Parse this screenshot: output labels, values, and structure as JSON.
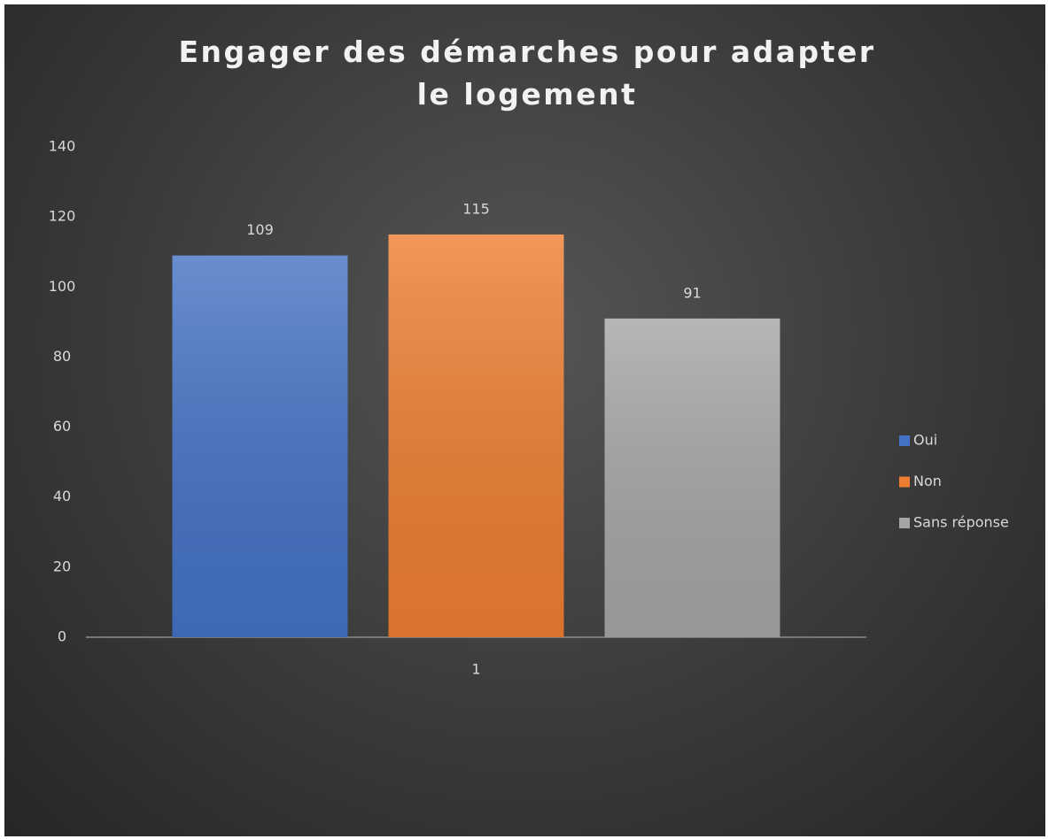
{
  "chart_data": {
    "type": "bar",
    "title": "Engager des démarches pour adapter le logement",
    "categories": [
      "1"
    ],
    "series": [
      {
        "name": "Oui",
        "color": "#4472c4",
        "values": [
          109
        ]
      },
      {
        "name": "Non",
        "color": "#ed7d31",
        "values": [
          115
        ]
      },
      {
        "name": "Sans réponse",
        "color": "#a5a5a5",
        "values": [
          91
        ]
      }
    ],
    "ylim": [
      0,
      140
    ],
    "yticks": [
      0,
      20,
      40,
      60,
      80,
      100,
      120,
      140
    ],
    "grid": false,
    "legend": "right"
  }
}
